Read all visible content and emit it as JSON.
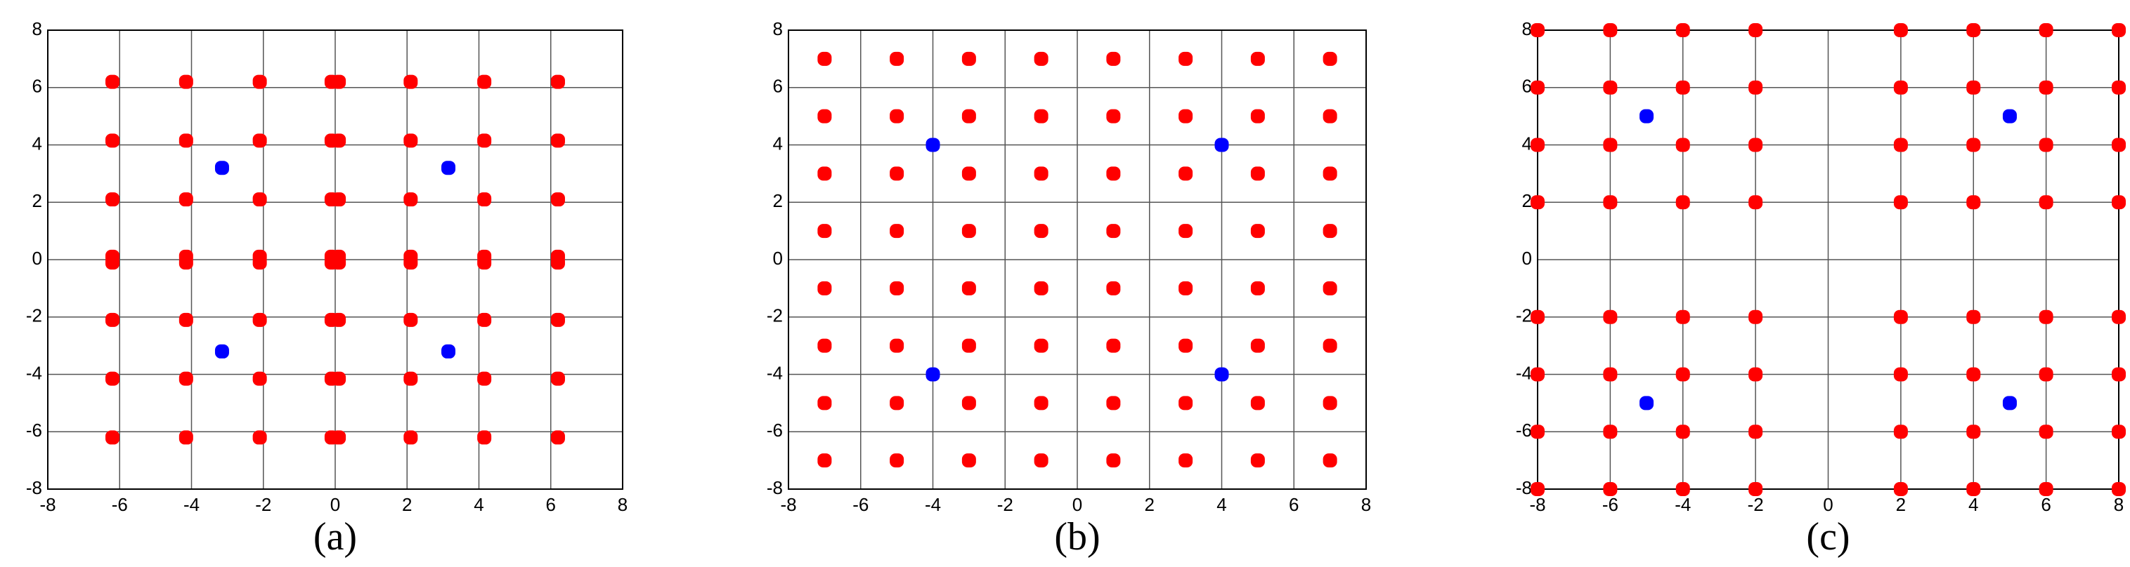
{
  "chart_data": [
    {
      "type": "scatter",
      "caption": "(a)",
      "xlim": [
        -8,
        8
      ],
      "ylim": [
        -8,
        8
      ],
      "xticks": [
        -8,
        -6,
        -4,
        -2,
        0,
        2,
        4,
        6,
        8
      ],
      "yticks": [
        -8,
        -6,
        -4,
        -2,
        0,
        2,
        4,
        6,
        8
      ],
      "grid": true,
      "series": [
        {
          "color": "#ff0000",
          "x": [
            -6.2,
            -6.2,
            -6.2,
            -6.2,
            -6.2,
            -6.2,
            -6.2,
            -6.2,
            -4.15,
            -4.15,
            -4.15,
            -4.15,
            -4.15,
            -4.15,
            -4.15,
            -4.15,
            -2.1,
            -2.1,
            -2.1,
            -2.1,
            -2.1,
            -2.1,
            -2.1,
            -2.1,
            -0.1,
            -0.1,
            -0.1,
            -0.1,
            -0.1,
            -0.1,
            -0.1,
            -0.1,
            0.1,
            0.1,
            0.1,
            0.1,
            0.1,
            0.1,
            0.1,
            0.1,
            2.1,
            2.1,
            2.1,
            2.1,
            2.1,
            2.1,
            2.1,
            2.1,
            4.15,
            4.15,
            4.15,
            4.15,
            4.15,
            4.15,
            4.15,
            4.15,
            6.2,
            6.2,
            6.2,
            6.2,
            6.2,
            6.2,
            6.2,
            6.2
          ],
          "values": [
            6.2,
            4.15,
            2.1,
            0.1,
            -0.1,
            -2.1,
            -4.15,
            -6.2,
            6.2,
            4.15,
            2.1,
            0.1,
            -0.1,
            -2.1,
            -4.15,
            -6.2,
            6.2,
            4.15,
            2.1,
            0.1,
            -0.1,
            -2.1,
            -4.15,
            -6.2,
            6.2,
            4.15,
            2.1,
            0.1,
            -0.1,
            -2.1,
            -4.15,
            -6.2,
            6.2,
            4.15,
            2.1,
            0.1,
            -0.1,
            -2.1,
            -4.15,
            -6.2,
            6.2,
            4.15,
            2.1,
            0.1,
            -0.1,
            -2.1,
            -4.15,
            -6.2,
            6.2,
            4.15,
            2.1,
            0.1,
            -0.1,
            -2.1,
            -4.15,
            -6.2,
            6.2,
            4.15,
            2.1,
            0.1,
            -0.1,
            -2.1,
            -4.15,
            -6.2
          ]
        },
        {
          "color": "#0000ff",
          "x": [
            -3.15,
            3.15,
            -3.15,
            3.15
          ],
          "values": [
            3.2,
            3.2,
            -3.2,
            -3.2
          ]
        }
      ]
    },
    {
      "type": "scatter",
      "caption": "(b)",
      "xlim": [
        -8,
        8
      ],
      "ylim": [
        -8,
        8
      ],
      "xticks": [
        -8,
        -6,
        -4,
        -2,
        0,
        2,
        4,
        6,
        8
      ],
      "yticks": [
        -8,
        -6,
        -4,
        -2,
        0,
        2,
        4,
        6,
        8
      ],
      "grid": true,
      "series": [
        {
          "color": "#ff0000",
          "x": [
            -7,
            -7,
            -7,
            -7,
            -7,
            -7,
            -7,
            -7,
            -5,
            -5,
            -5,
            -5,
            -5,
            -5,
            -5,
            -5,
            -3,
            -3,
            -3,
            -3,
            -3,
            -3,
            -3,
            -3,
            -1,
            -1,
            -1,
            -1,
            -1,
            -1,
            -1,
            -1,
            1,
            1,
            1,
            1,
            1,
            1,
            1,
            1,
            3,
            3,
            3,
            3,
            3,
            3,
            3,
            3,
            5,
            5,
            5,
            5,
            5,
            5,
            5,
            5,
            7,
            7,
            7,
            7,
            7,
            7,
            7,
            7
          ],
          "values": [
            7,
            5,
            3,
            1,
            -1,
            -3,
            -5,
            -7,
            7,
            5,
            3,
            1,
            -1,
            -3,
            -5,
            -7,
            7,
            5,
            3,
            1,
            -1,
            -3,
            -5,
            -7,
            7,
            5,
            3,
            1,
            -1,
            -3,
            -5,
            -7,
            7,
            5,
            3,
            1,
            -1,
            -3,
            -5,
            -7,
            7,
            5,
            3,
            1,
            -1,
            -3,
            -5,
            -7,
            7,
            5,
            3,
            1,
            -1,
            -3,
            -5,
            -7,
            7,
            5,
            3,
            1,
            -1,
            -3,
            -5,
            -7
          ]
        },
        {
          "color": "#0000ff",
          "x": [
            -4,
            4,
            -4,
            4
          ],
          "values": [
            4,
            4,
            -4,
            -4
          ]
        }
      ]
    },
    {
      "type": "scatter",
      "caption": "(c)",
      "xlim": [
        -8,
        8
      ],
      "ylim": [
        -8,
        8
      ],
      "xticks": [
        -8,
        -6,
        -4,
        -2,
        0,
        2,
        4,
        6,
        8
      ],
      "yticks": [
        -8,
        -6,
        -4,
        -2,
        0,
        2,
        4,
        6,
        8
      ],
      "grid": true,
      "series": [
        {
          "color": "#ff0000",
          "x": [
            -8,
            -8,
            -8,
            -8,
            -8,
            -8,
            -8,
            -8,
            -6,
            -6,
            -6,
            -6,
            -6,
            -6,
            -6,
            -6,
            -4,
            -4,
            -4,
            -4,
            -4,
            -4,
            -4,
            -4,
            -2,
            -2,
            -2,
            -2,
            -2,
            -2,
            -2,
            -2,
            2,
            2,
            2,
            2,
            2,
            2,
            2,
            2,
            4,
            4,
            4,
            4,
            4,
            4,
            4,
            4,
            6,
            6,
            6,
            6,
            6,
            6,
            6,
            6,
            8,
            8,
            8,
            8,
            8,
            8,
            8,
            8
          ],
          "values": [
            8,
            6,
            4,
            2,
            -2,
            -4,
            -6,
            -8,
            8,
            6,
            4,
            2,
            -2,
            -4,
            -6,
            -8,
            8,
            6,
            4,
            2,
            -2,
            -4,
            -6,
            -8,
            8,
            6,
            4,
            2,
            -2,
            -4,
            -6,
            -8,
            8,
            6,
            4,
            2,
            -2,
            -4,
            -6,
            -8,
            8,
            6,
            4,
            2,
            -2,
            -4,
            -6,
            -8,
            8,
            6,
            4,
            2,
            -2,
            -4,
            -6,
            -8,
            8,
            6,
            4,
            2,
            -2,
            -4,
            -6,
            -8
          ]
        },
        {
          "color": "#0000ff",
          "x": [
            -5,
            5,
            -5,
            5
          ],
          "values": [
            5,
            5,
            -5,
            -5
          ]
        }
      ]
    }
  ]
}
